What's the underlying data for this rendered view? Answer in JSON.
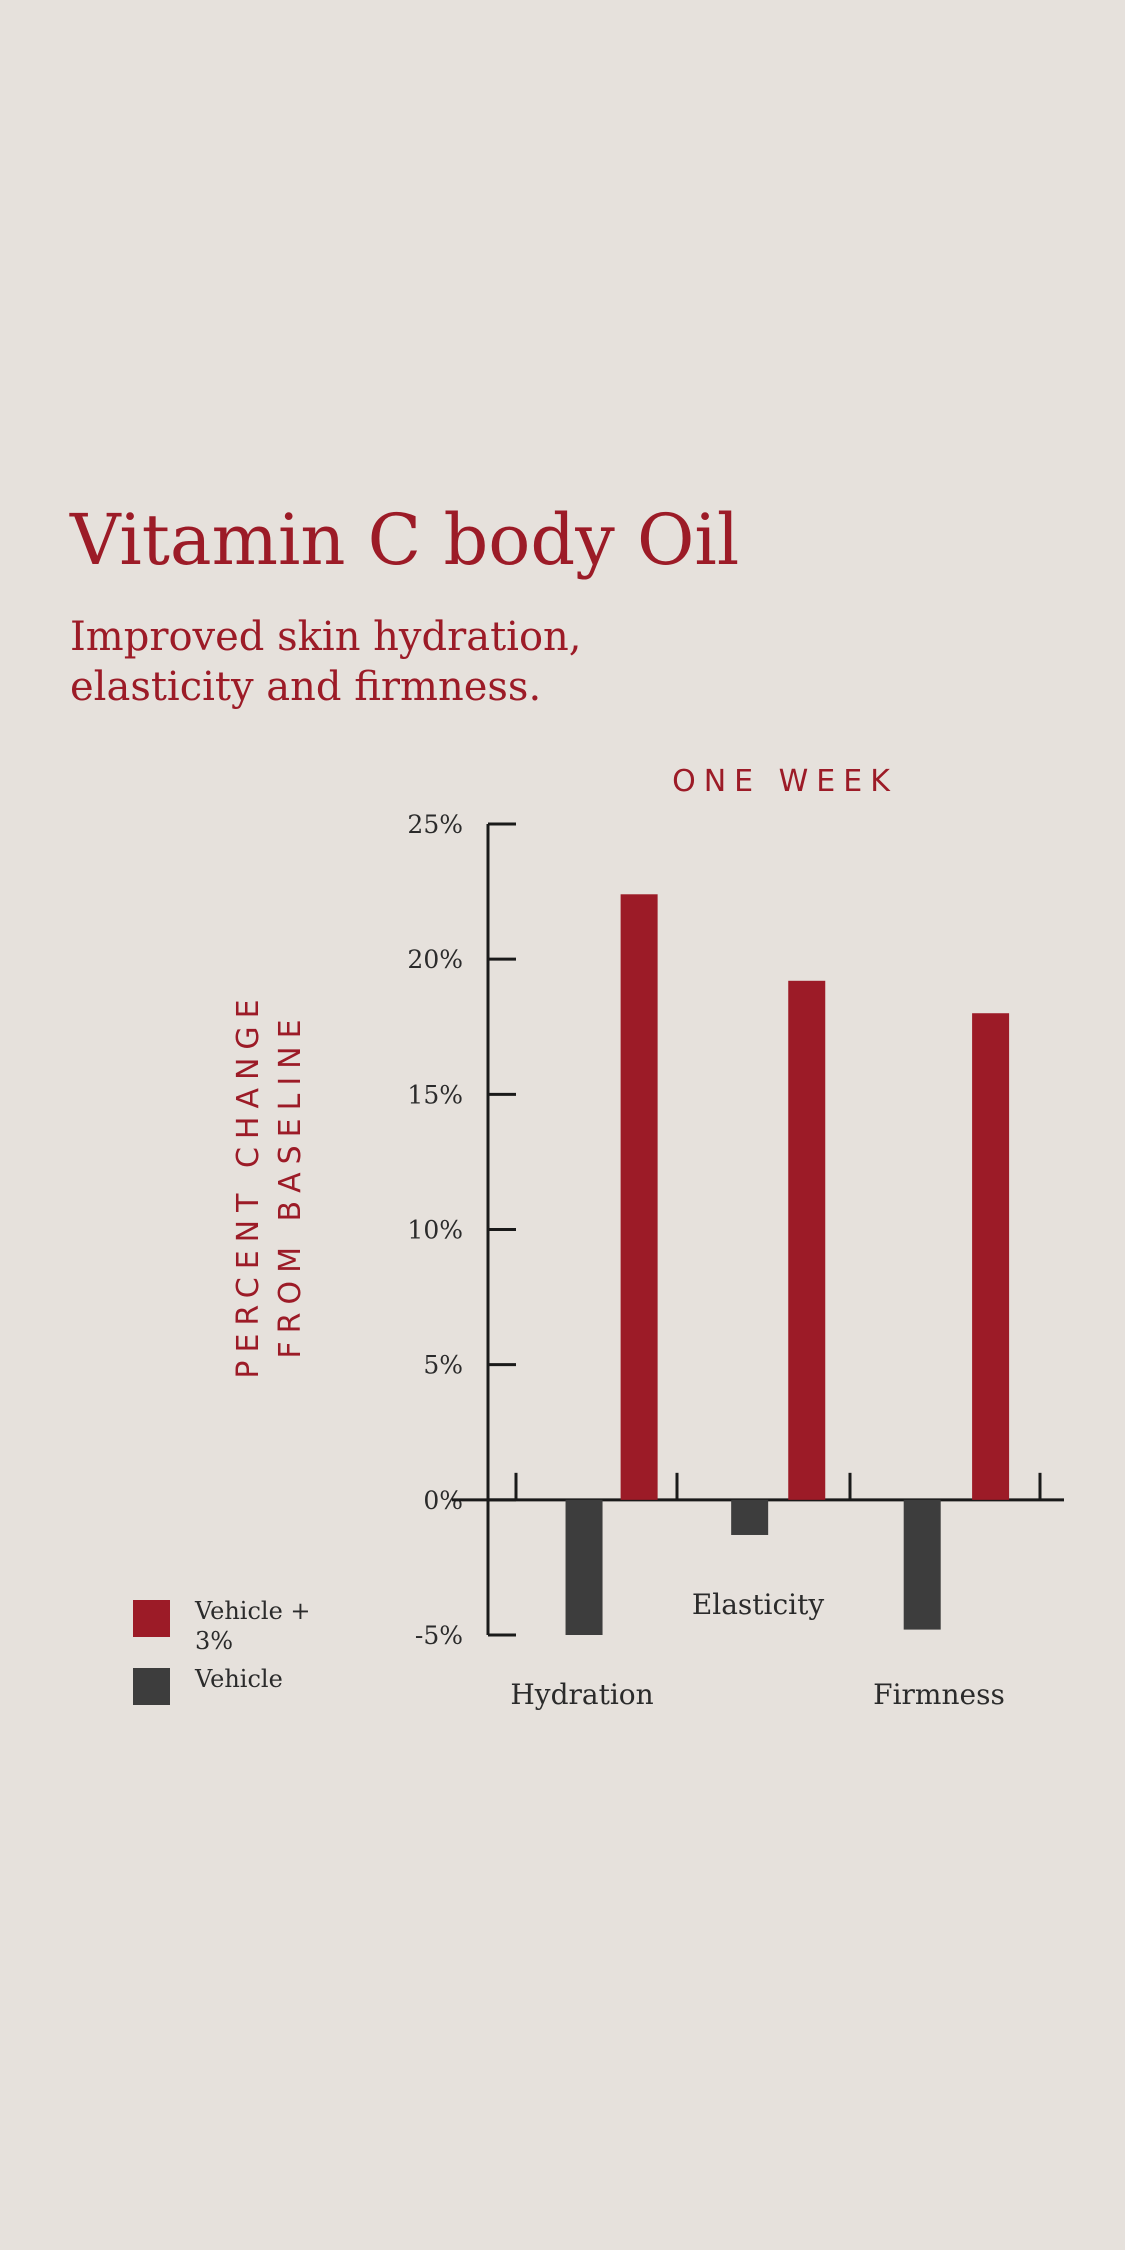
{
  "colors": {
    "background": "#e6e1dc",
    "accent": "#9c1b27",
    "vehicle_plus": "#9c1b27",
    "vehicle": "#3d3d3d",
    "axis": "#1a1a1a",
    "text": "#2b2b2b"
  },
  "header": {
    "title": "Vitamin C body Oil",
    "subtitle": "Improved skin hydration, elasticity and firmness."
  },
  "chart_data": {
    "type": "bar",
    "title": "ONE WEEK",
    "ylabel": "PERCENT CHANGE FROM BASELINE",
    "xlabel": "",
    "categories": [
      "Hydration",
      "Elasticity",
      "Firmness"
    ],
    "series": [
      {
        "name": "Vehicle + 3%",
        "values": [
          22.4,
          19.2,
          18.0
        ]
      },
      {
        "name": "Vehicle",
        "values": [
          -5.0,
          -1.3,
          -4.8
        ]
      }
    ],
    "ylim": [
      -5,
      25
    ],
    "yticks": [
      -5,
      0,
      5,
      10,
      15,
      20,
      25
    ],
    "ytick_labels": [
      "-5%",
      "0%",
      "5%",
      "10%",
      "15%",
      "20%",
      "25%"
    ],
    "grid": false,
    "legend": "bottom-left"
  }
}
